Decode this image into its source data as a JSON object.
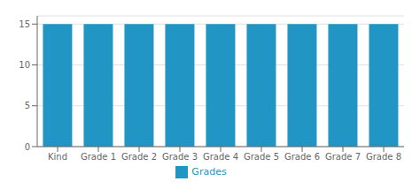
{
  "chart_data": {
    "type": "bar",
    "categories": [
      "Kind",
      "Grade 1",
      "Grade 2",
      "Grade 3",
      "Grade 4",
      "Grade 5",
      "Grade 6",
      "Grade 7",
      "Grade 8"
    ],
    "series": [
      {
        "name": "Grades",
        "color": "#2196C4",
        "values": [
          15,
          15,
          15,
          15,
          15,
          15,
          15,
          15,
          15
        ]
      }
    ],
    "ylim": [
      0,
      16
    ],
    "yticks": [
      0,
      5,
      10,
      15
    ],
    "grid": true,
    "legend": "bottom"
  }
}
